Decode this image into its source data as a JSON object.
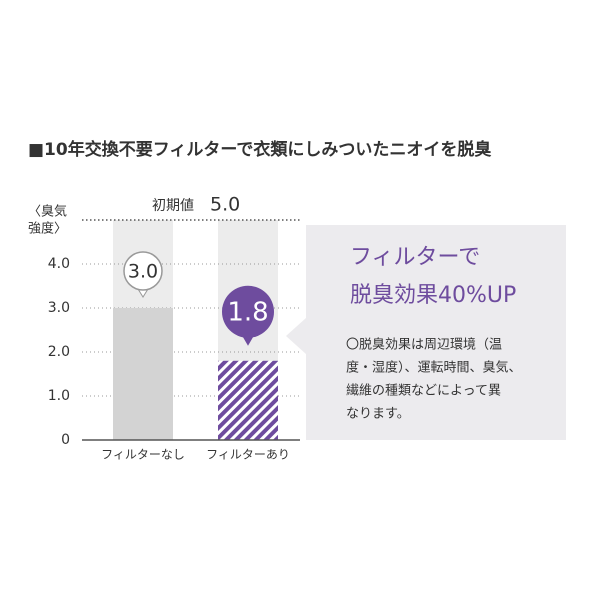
{
  "chart_data": {
    "type": "bar",
    "title": "■10年交換不要フィルターで衣類にしみついたニオイを脱臭",
    "y_label": [
      "〈臭気",
      "強度〉"
    ],
    "categories": [
      "フィルターなし",
      "フィルターあり"
    ],
    "values": [
      3.0,
      1.8
    ],
    "value_labels": [
      "3.0",
      "1.8"
    ],
    "colors": [
      "#d3d3d3",
      "#6e4c9e"
    ],
    "hatched": [
      false,
      true
    ],
    "ylim": [
      0,
      5
    ],
    "yticks": [
      0,
      {
        "value": 1,
        "label": "1.0"
      },
      {
        "value": 2,
        "label": "2.0"
      },
      {
        "value": 3,
        "label": "3.0"
      },
      {
        "value": 4,
        "label": "4.0"
      }
    ],
    "grid": true,
    "reference_line": {
      "label": "初期値",
      "value": 5,
      "value_label": "5.0"
    },
    "callout": {
      "headline": [
        "フィルターで",
        "脱臭効果40%UP"
      ],
      "note": [
        "〇脱臭効果は周辺環境（温",
        "度・湿度）、運転時間、臭気、",
        "繊維の種類などによって異",
        "なります。"
      ]
    }
  }
}
